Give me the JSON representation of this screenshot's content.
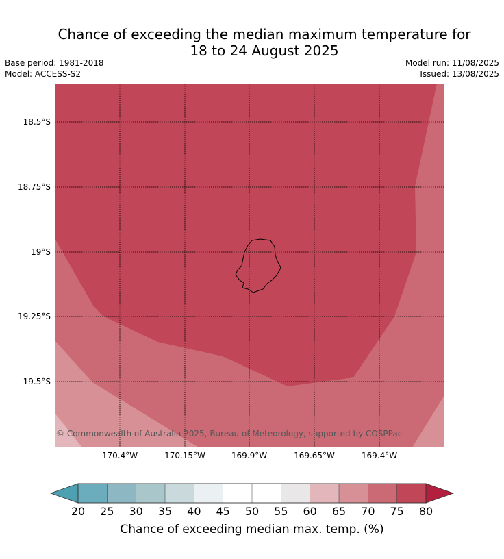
{
  "title_line1": "Chance of exceeding the median maximum temperature for",
  "title_line2": "18 to 24 August 2025",
  "base_period": "Base period: 1981-2018",
  "model": "Model: ACCESS-S2",
  "model_run": "Model run: 11/08/2025",
  "issued": "Issued: 13/08/2025",
  "copyright": "© Commonwealth of Australia 2025, Bureau of Meteorology, supported by COSPPac",
  "map": {
    "lat_ticks": [
      "18.5°S",
      "18.75°S",
      "19°S",
      "19.25°S",
      "19.5°S"
    ],
    "lon_ticks": [
      "170.4°W",
      "170.15°W",
      "169.9°W",
      "169.65°W",
      "169.4°W"
    ],
    "region_colors": {
      "band_75_80": "#c14657",
      "band_70_75": "#cb6a75",
      "band_65_70": "#d79096",
      "band_60_65": "#e2b6ba"
    },
    "coastline_color": "#000000"
  },
  "colorbar": {
    "label": "Chance of exceeding median max. temp. (%)",
    "ticks": [
      "20",
      "25",
      "30",
      "35",
      "40",
      "45",
      "50",
      "55",
      "60",
      "65",
      "70",
      "75",
      "80"
    ],
    "colors": [
      "#6badbd",
      "#8db7c2",
      "#a9c6ca",
      "#c9d9dc",
      "#ebf1f2",
      "#ffffff",
      "#ffffff",
      "#e9e7e8",
      "#e2b6ba",
      "#d79096",
      "#cb6a75",
      "#c14657"
    ],
    "under_color": "#4d9fb2",
    "over_color": "#b3203f"
  }
}
